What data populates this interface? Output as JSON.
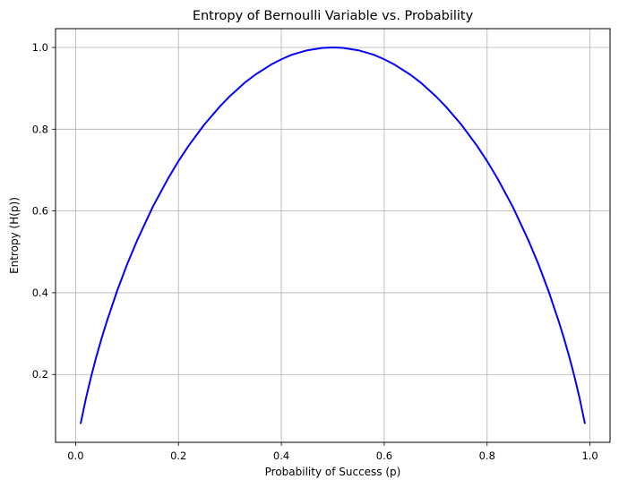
{
  "chart_data": {
    "type": "line",
    "title": "Entropy of Bernoulli Variable vs. Probability",
    "xlabel": "Probability of Success (p)",
    "ylabel": "Entropy (H(p))",
    "xlim": [
      -0.039,
      1.039
    ],
    "ylim": [
      0.034,
      1.046
    ],
    "x_ticks": [
      0.0,
      0.2,
      0.4,
      0.6,
      0.8,
      1.0
    ],
    "x_tick_labels": [
      "0.0",
      "0.2",
      "0.4",
      "0.6",
      "0.8",
      "1.0"
    ],
    "y_ticks": [
      0.2,
      0.4,
      0.6,
      0.8,
      1.0
    ],
    "y_tick_labels": [
      "0.2",
      "0.4",
      "0.6",
      "0.8",
      "1.0"
    ],
    "grid": true,
    "series": [
      {
        "color": "#0000ff",
        "x": [
          0.01,
          0.02,
          0.03,
          0.04,
          0.05,
          0.06,
          0.08,
          0.1,
          0.12,
          0.15,
          0.18,
          0.2,
          0.22,
          0.25,
          0.28,
          0.3,
          0.33,
          0.35,
          0.38,
          0.4,
          0.42,
          0.45,
          0.48,
          0.5,
          0.52,
          0.55,
          0.58,
          0.6,
          0.62,
          0.65,
          0.67,
          0.7,
          0.72,
          0.75,
          0.78,
          0.8,
          0.82,
          0.85,
          0.88,
          0.9,
          0.92,
          0.94,
          0.95,
          0.96,
          0.97,
          0.98,
          0.99
        ],
        "y": [
          0.081,
          0.141,
          0.194,
          0.242,
          0.286,
          0.327,
          0.402,
          0.469,
          0.529,
          0.61,
          0.68,
          0.722,
          0.76,
          0.811,
          0.855,
          0.881,
          0.915,
          0.934,
          0.958,
          0.971,
          0.982,
          0.993,
          0.999,
          1.0,
          0.999,
          0.993,
          0.982,
          0.971,
          0.958,
          0.934,
          0.915,
          0.881,
          0.855,
          0.811,
          0.76,
          0.722,
          0.68,
          0.61,
          0.529,
          0.469,
          0.402,
          0.327,
          0.286,
          0.242,
          0.194,
          0.141,
          0.081
        ]
      }
    ]
  }
}
